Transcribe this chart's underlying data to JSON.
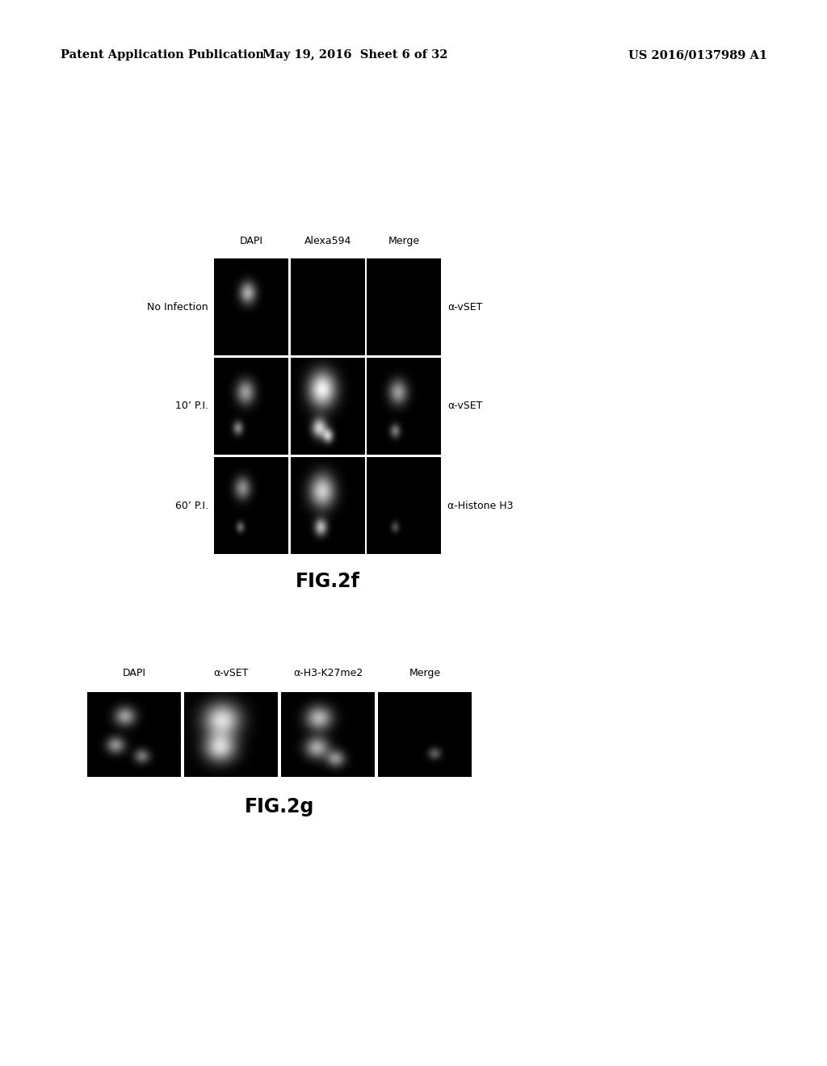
{
  "header_left": "Patent Application Publication",
  "header_center": "May 19, 2016  Sheet 6 of 32",
  "header_right": "US 2016/0137989 A1",
  "header_fontsize": 10.5,
  "background_color": "#ffffff",
  "fig2f": {
    "title": "FIG.2f",
    "col_labels": [
      "DAPI",
      "Alexa594",
      "Merge"
    ],
    "row_labels": [
      "No Infection",
      "10’ P.I.",
      "60’ P.I."
    ],
    "right_labels": [
      "α-vSET",
      "α-vSET",
      "α-Histone H3"
    ],
    "panel_color": "#000000"
  },
  "fig2g": {
    "title": "FIG.2g",
    "col_labels": [
      "DAPI",
      "α-vSET",
      "α-H3-K27me2",
      "Merge"
    ],
    "panel_color": "#000000"
  }
}
